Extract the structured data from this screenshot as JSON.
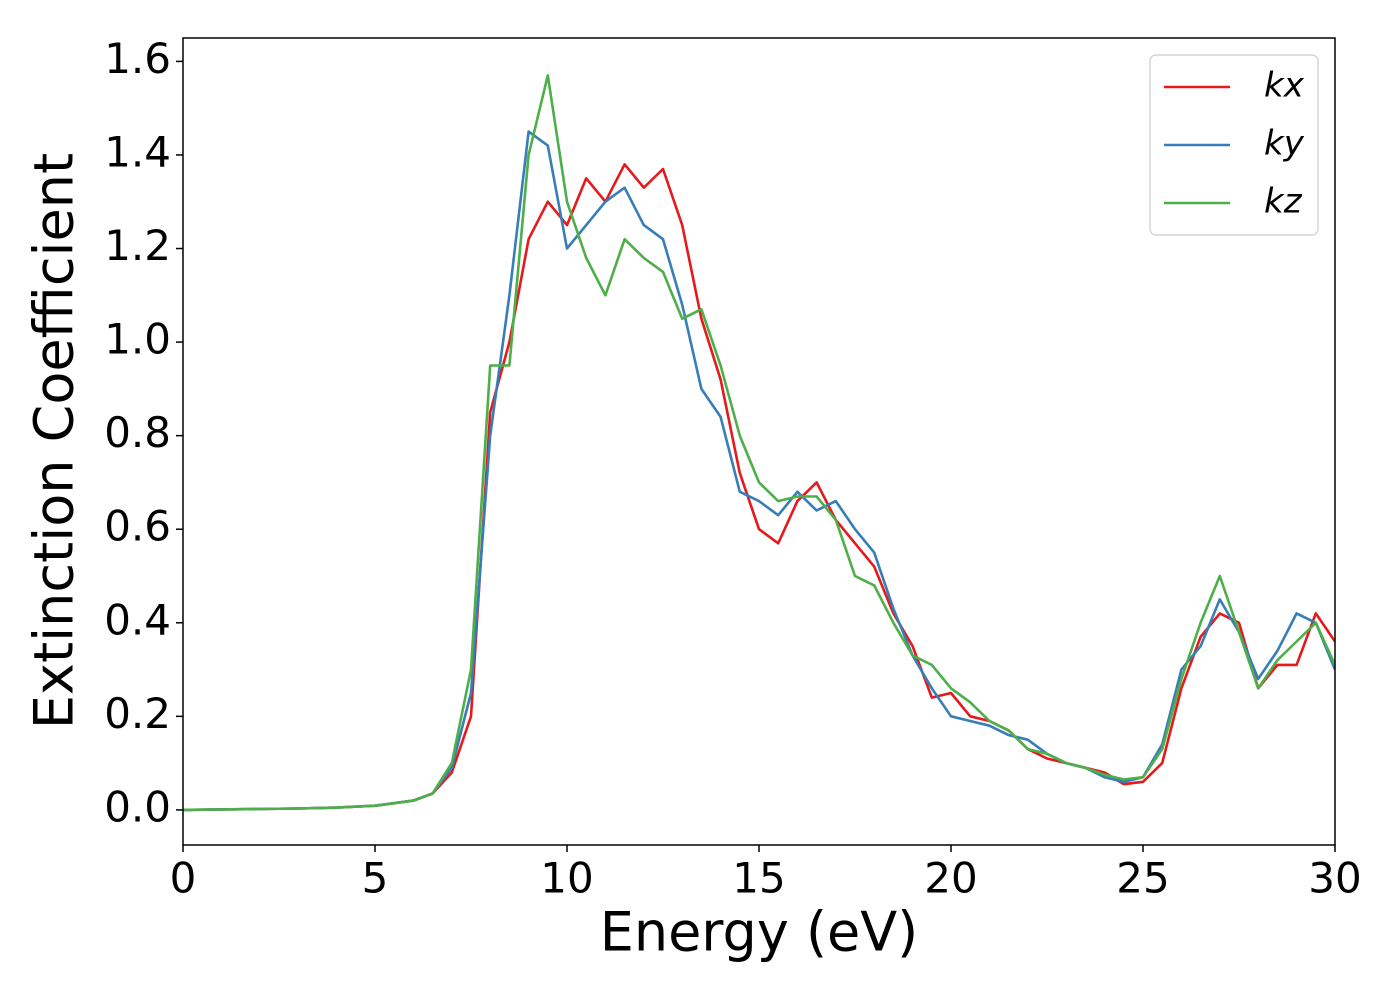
{
  "chart_data": {
    "type": "line",
    "xlabel": "Energy (eV)",
    "ylabel": "Extinction Coefficient",
    "xlim": [
      0,
      30
    ],
    "ylim": [
      -0.075,
      1.65
    ],
    "xticks": [
      0,
      5,
      10,
      15,
      20,
      25,
      30
    ],
    "yticks": [
      {
        "value": 0,
        "label": "0.0"
      },
      {
        "value": 0.2,
        "label": "0.2"
      },
      {
        "value": 0.4,
        "label": "0.4"
      },
      {
        "value": 0.6,
        "label": "0.6"
      },
      {
        "value": 0.8,
        "label": "0.8"
      },
      {
        "value": 1,
        "label": "1.0"
      },
      {
        "value": 1.2,
        "label": "1.2"
      },
      {
        "value": 1.4,
        "label": "1.4"
      },
      {
        "value": 1.6,
        "label": "1.6"
      }
    ],
    "legend": "upper right",
    "grid": false,
    "x": [
      0,
      1,
      2,
      3,
      4,
      5,
      6,
      6.5,
      7,
      7.5,
      8,
      8.5,
      9,
      9.5,
      10,
      10.5,
      11,
      11.5,
      12,
      12.5,
      13,
      13.5,
      14,
      14.5,
      15,
      15.5,
      16,
      16.5,
      17,
      17.5,
      18,
      18.5,
      19,
      19.5,
      20,
      20.5,
      21,
      21.5,
      22,
      22.5,
      23,
      23.5,
      24,
      24.5,
      25,
      25.5,
      26,
      26.5,
      27,
      27.5,
      28,
      28.5,
      29,
      29.5,
      30
    ],
    "series": [
      {
        "name": "kx",
        "color": "#e41a1c",
        "values": [
          0,
          0.001,
          0.002,
          0.003,
          0.005,
          0.009,
          0.02,
          0.035,
          0.08,
          0.2,
          0.85,
          1.0,
          1.22,
          1.3,
          1.25,
          1.35,
          1.3,
          1.38,
          1.33,
          1.37,
          1.25,
          1.05,
          0.92,
          0.72,
          0.6,
          0.57,
          0.66,
          0.7,
          0.62,
          0.57,
          0.52,
          0.42,
          0.35,
          0.24,
          0.25,
          0.2,
          0.19,
          0.17,
          0.13,
          0.11,
          0.1,
          0.09,
          0.08,
          0.055,
          0.06,
          0.1,
          0.26,
          0.37,
          0.42,
          0.4,
          0.26,
          0.31,
          0.31,
          0.42,
          0.36
        ]
      },
      {
        "name": "ky",
        "color": "#377eb8",
        "values": [
          0,
          0.001,
          0.002,
          0.003,
          0.005,
          0.009,
          0.02,
          0.035,
          0.09,
          0.25,
          0.8,
          1.1,
          1.45,
          1.42,
          1.2,
          1.25,
          1.3,
          1.33,
          1.25,
          1.22,
          1.08,
          0.9,
          0.84,
          0.68,
          0.66,
          0.63,
          0.68,
          0.64,
          0.66,
          0.6,
          0.55,
          0.43,
          0.33,
          0.26,
          0.2,
          0.19,
          0.18,
          0.16,
          0.15,
          0.12,
          0.1,
          0.09,
          0.07,
          0.06,
          0.07,
          0.14,
          0.3,
          0.35,
          0.45,
          0.38,
          0.28,
          0.34,
          0.42,
          0.4,
          0.3
        ]
      },
      {
        "name": "kz",
        "color": "#4daf4a",
        "values": [
          0,
          0.001,
          0.002,
          0.003,
          0.005,
          0.009,
          0.02,
          0.035,
          0.1,
          0.3,
          0.95,
          0.95,
          1.4,
          1.57,
          1.3,
          1.18,
          1.1,
          1.22,
          1.18,
          1.15,
          1.05,
          1.07,
          0.95,
          0.8,
          0.7,
          0.66,
          0.67,
          0.67,
          0.62,
          0.5,
          0.48,
          0.4,
          0.33,
          0.31,
          0.26,
          0.23,
          0.19,
          0.17,
          0.13,
          0.12,
          0.1,
          0.09,
          0.075,
          0.065,
          0.07,
          0.13,
          0.28,
          0.4,
          0.5,
          0.38,
          0.26,
          0.32,
          0.36,
          0.4,
          0.31
        ]
      }
    ]
  }
}
